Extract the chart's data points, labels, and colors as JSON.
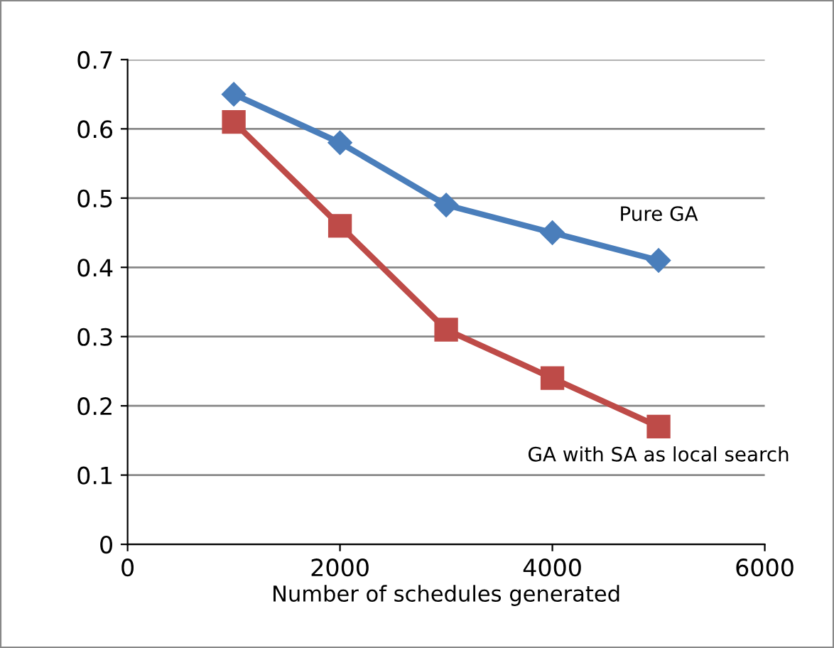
{
  "chart_data": {
    "type": "line",
    "xlabel": "Number of schedules generated",
    "x": [
      1000,
      2000,
      3000,
      4000,
      5000
    ],
    "series": [
      {
        "name": "Pure GA",
        "color": "#4a7ebb",
        "marker": "diamond",
        "values": [
          0.65,
          0.58,
          0.49,
          0.45,
          0.41
        ]
      },
      {
        "name": "GA with SA as local search",
        "color": "#be4b48",
        "marker": "square",
        "values": [
          0.61,
          0.46,
          0.31,
          0.24,
          0.17
        ]
      }
    ],
    "xlim": [
      0,
      6000
    ],
    "xticks": [
      0,
      2000,
      4000,
      6000
    ],
    "ylim": [
      0,
      0.7
    ],
    "yticks": [
      0,
      0.1,
      0.2,
      0.3,
      0.4,
      0.5,
      0.6,
      0.7
    ],
    "grid": "y",
    "line_style": "solid"
  }
}
